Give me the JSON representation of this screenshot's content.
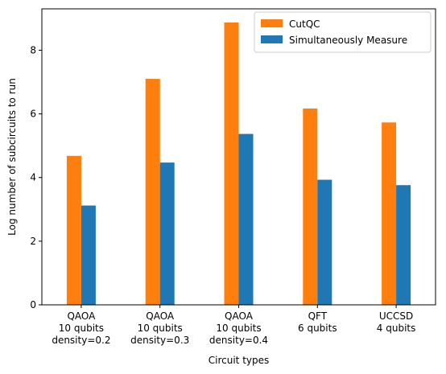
{
  "chart_data": {
    "type": "bar",
    "title": "",
    "xlabel": "Circuit types",
    "ylabel": "Log number of subcircuits to run",
    "categories": [
      [
        "QAOA",
        "10 qubits",
        "density=0.2"
      ],
      [
        "QAOA",
        "10 qubits",
        "density=0.3"
      ],
      [
        "QAOA",
        "10 qubits",
        "density=0.4"
      ],
      [
        "QFT",
        "6 qubits"
      ],
      [
        "UCCSD",
        "4 qubits"
      ]
    ],
    "series": [
      {
        "name": "CutQC",
        "color": "#ff7f0e",
        "values": [
          4.68,
          7.1,
          8.87,
          6.17,
          5.73
        ]
      },
      {
        "name": "Simultaneously Measure",
        "color": "#1f77b4",
        "values": [
          3.12,
          4.47,
          5.37,
          3.93,
          3.76
        ]
      }
    ],
    "yticks": [
      0,
      2,
      4,
      6,
      8
    ],
    "ylim": [
      0,
      9.3
    ],
    "grid": false,
    "legend_position": "top-right"
  }
}
